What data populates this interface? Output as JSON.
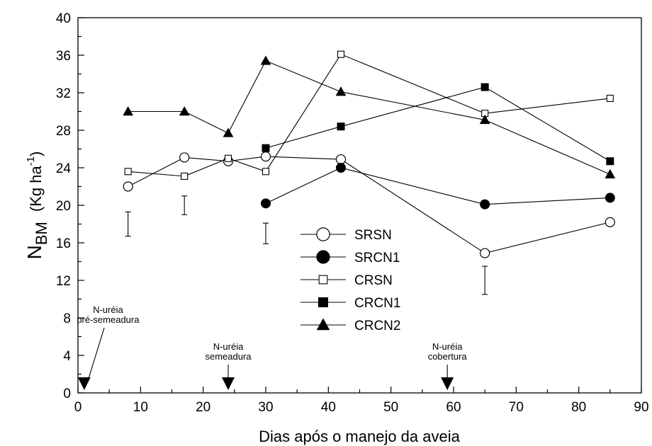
{
  "chart_data": {
    "type": "line",
    "title": "",
    "xlabel": "Dias após o manejo da aveia",
    "ylabel": {
      "main": "N",
      "sub": "BM",
      "unit_open": "(Kg ha",
      "unit_sup": "-1",
      "unit_close": ")"
    },
    "xlim": [
      0,
      90
    ],
    "ylim": [
      0,
      40
    ],
    "xticks": [
      0,
      10,
      20,
      30,
      40,
      50,
      60,
      70,
      80,
      90
    ],
    "yticks": [
      0,
      4,
      8,
      12,
      16,
      20,
      24,
      28,
      32,
      36,
      40
    ],
    "grid": false,
    "legend_position": "center",
    "series": [
      {
        "name": "SRSN",
        "marker": "circle-open",
        "x": [
          8,
          17,
          24,
          30,
          42,
          65,
          85
        ],
        "y": [
          22.0,
          25.1,
          24.7,
          25.2,
          24.9,
          14.9,
          18.2
        ]
      },
      {
        "name": "SRCN1",
        "marker": "circle-filled",
        "x": [
          30,
          42,
          65,
          85
        ],
        "y": [
          20.2,
          24.0,
          20.1,
          20.8
        ]
      },
      {
        "name": "CRSN",
        "marker": "square-open",
        "x": [
          8,
          17,
          24,
          30,
          42,
          65,
          85
        ],
        "y": [
          23.6,
          23.1,
          25.0,
          23.6,
          36.1,
          29.8,
          31.4
        ]
      },
      {
        "name": "CRCN1",
        "marker": "square-filled",
        "x": [
          30,
          42,
          65,
          85
        ],
        "y": [
          26.1,
          28.4,
          32.6,
          24.7
        ]
      },
      {
        "name": "CRCN2",
        "marker": "triangle-filled",
        "x": [
          8,
          17,
          24,
          30,
          42,
          65,
          85
        ],
        "y": [
          30.0,
          30.0,
          27.7,
          35.4,
          32.1,
          29.1,
          23.3
        ]
      }
    ],
    "error_bars": [
      {
        "x": 8,
        "low": 16.7,
        "high": 19.3
      },
      {
        "x": 17,
        "low": 19.0,
        "high": 21.0
      },
      {
        "x": 30,
        "low": 15.9,
        "high": 18.1
      },
      {
        "x": 65,
        "low": 10.5,
        "high": 13.5
      }
    ],
    "annotations": [
      {
        "lines": [
          "N-uréia",
          "pré-semeadura"
        ],
        "x": 1,
        "kind": "diagonal"
      },
      {
        "lines": [
          "N-uréia",
          "semeadura"
        ],
        "x": 24,
        "kind": "vertical"
      },
      {
        "lines": [
          "N-uréia",
          "cobertura"
        ],
        "x": 59,
        "kind": "vertical"
      }
    ]
  }
}
